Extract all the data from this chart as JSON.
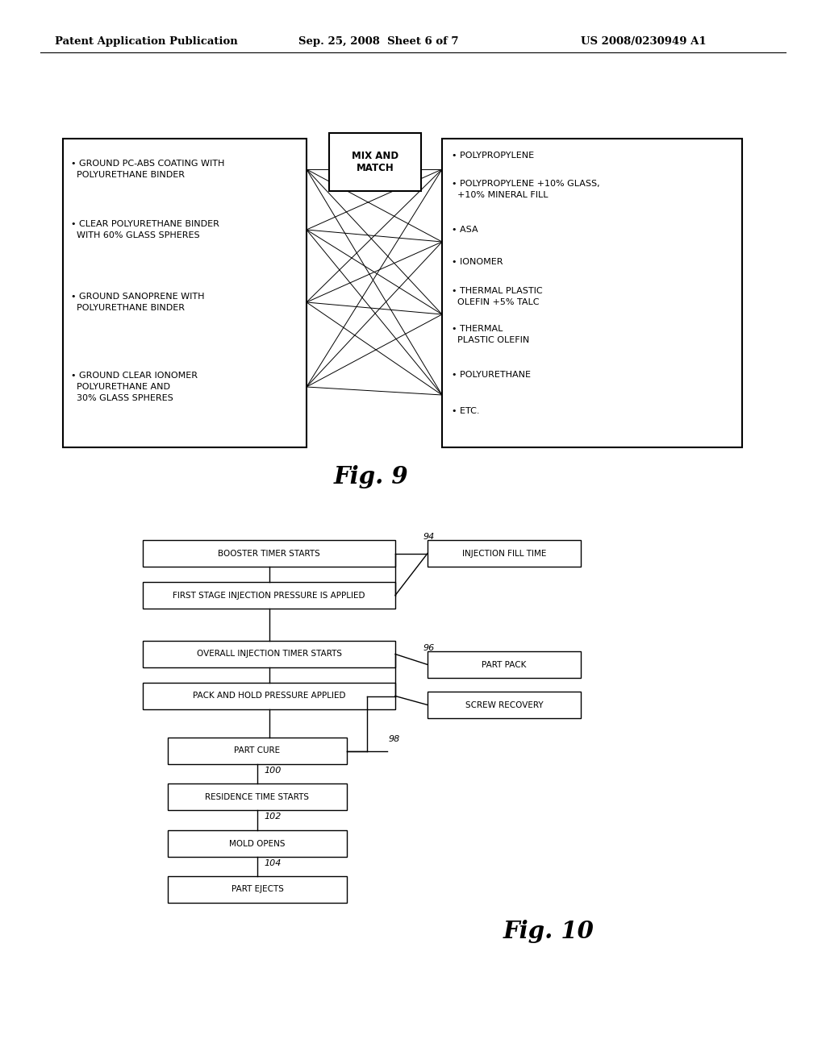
{
  "bg_color": "#ffffff",
  "header_left": "Patent Application Publication",
  "header_center": "Sep. 25, 2008  Sheet 6 of 7",
  "header_right": "US 2008/0230949 A1",
  "fig9_caption": "Fig. 9",
  "fig10_caption": "Fig. 10",
  "fig9_center_label": "MIX AND\nMATCH",
  "fig9_left_items": [
    "• GROUND PC-ABS COATING WITH\n  POLYURETHANE BINDER",
    "• CLEAR POLYURETHANE BINDER\n  WITH 60% GLASS SPHERES",
    "• GROUND SANOPRENE WITH\n  POLYURETHANE BINDER",
    "• GROUND CLEAR IONOMER\n  POLYURETHANE AND\n  30% GLASS SPHERES"
  ],
  "fig9_right_items": [
    "• POLYPROPYLENE",
    "• POLYPROPYLENE +10% GLASS,\n  +10% MINERAL FILL",
    "• ASA",
    "• IONOMER",
    "• THERMAL PLASTIC\n  OLEFIN +5% TALC",
    "• THERMAL\n  PLASTIC OLEFIN",
    "• POLYURETHANE",
    "• ETC."
  ],
  "fig10_main_boxes": [
    "BOOSTER TIMER STARTS",
    "FIRST STAGE INJECTION PRESSURE IS APPLIED",
    "OVERALL INJECTION TIMER STARTS",
    "PACK AND HOLD PRESSURE APPLIED",
    "PART CURE",
    "RESIDENCE TIME STARTS",
    "MOLD OPENS",
    "PART EJECTS"
  ],
  "fig10_side_94": "INJECTION FILL TIME",
  "fig10_side_96": [
    "PART PACK",
    "SCREW RECOVERY"
  ],
  "fig10_labels": [
    "94",
    "96",
    "98",
    "100",
    "102",
    "104"
  ]
}
